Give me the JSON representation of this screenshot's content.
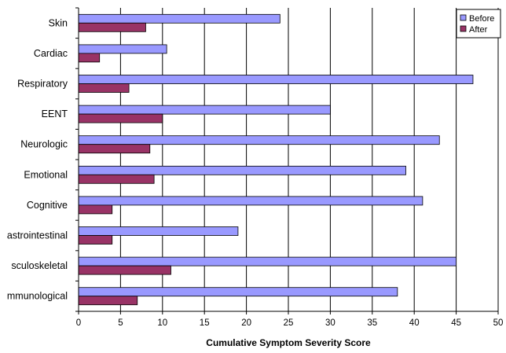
{
  "chart_data": {
    "type": "bar",
    "orientation": "horizontal",
    "categories": [
      "Skin",
      "Cardiac",
      "Respiratory",
      "EENT",
      "Neurologic",
      "Emotional",
      "Cognitive",
      "astrointestinal",
      "sculoskeletal",
      "mmunological"
    ],
    "series": [
      {
        "name": "Before",
        "color": "#9999ff",
        "values": [
          24,
          10.5,
          47,
          30,
          43,
          39,
          41,
          19,
          45,
          38
        ]
      },
      {
        "name": "After",
        "color": "#993366",
        "values": [
          8,
          2.5,
          6,
          10,
          8.5,
          9,
          4,
          4,
          11,
          7
        ]
      }
    ],
    "xlabel": "Cumulative Symptom Severity Score",
    "xlim": [
      0,
      50
    ],
    "xticks": [
      "0",
      "5",
      "10",
      "15",
      "20",
      "25",
      "30",
      "35",
      "40",
      "45",
      "50"
    ],
    "grid": "vertical",
    "legend_position": "top-right"
  }
}
